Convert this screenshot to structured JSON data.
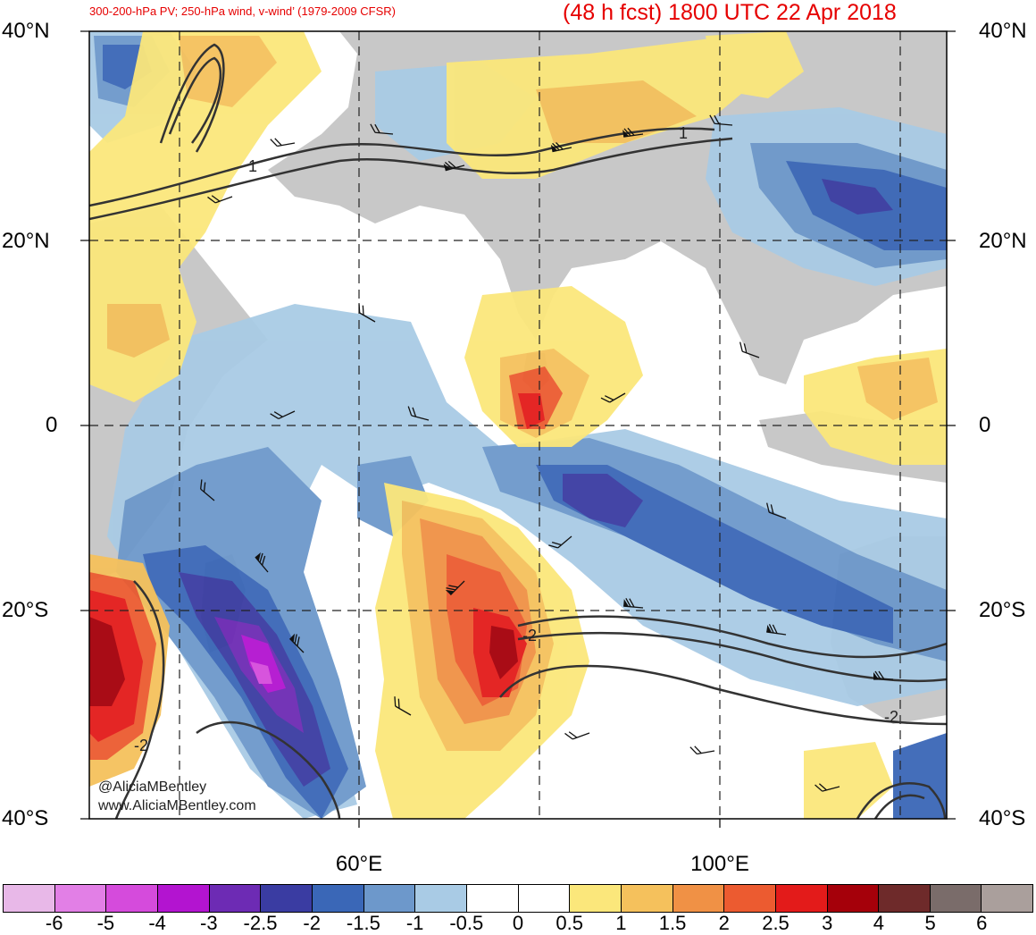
{
  "header": {
    "left_title": "300-200-hPa PV; 250-hPa wind, v-wind’ (1979-2009 CFSR)",
    "right_title": "(48 h fcst) 1800 UTC 22 Apr 2018"
  },
  "axes": {
    "lat_labels": [
      "40°N",
      "20°N",
      "0",
      "20°S",
      "40°S"
    ],
    "lon_labels": [
      "60°E",
      "100°E"
    ]
  },
  "contour_labels": [
    "1",
    "1",
    "-2",
    "-2",
    "-2"
  ],
  "watermark": {
    "line1": "@AliciaMBentley",
    "line2": "www.AliciaMBentley.com"
  },
  "colorbar": {
    "colors": [
      "#e8b8e8",
      "#e27fe6",
      "#d54bdc",
      "#b314d0",
      "#6d2bb4",
      "#3a3ca2",
      "#3a67b7",
      "#6d98cb",
      "#a9cbe5",
      "#ffffff",
      "#ffffff",
      "#fbe77b",
      "#f5c15c",
      "#f09145",
      "#ec5b30",
      "#e31b1a",
      "#a5000a",
      "#6e2a2a",
      "#7a6c6a",
      "#aa9f9c"
    ],
    "labels": [
      "-6",
      "-5",
      "-4",
      "-3",
      "-2.5",
      "-2",
      "-1.5",
      "-1",
      "-0.5",
      "0",
      "0.5",
      "1",
      "1.5",
      "2",
      "2.5",
      "3",
      "4",
      "5",
      "6"
    ]
  },
  "colors": {
    "title": "#e60000",
    "land": "#c8c8c8",
    "contour": "#333333"
  }
}
